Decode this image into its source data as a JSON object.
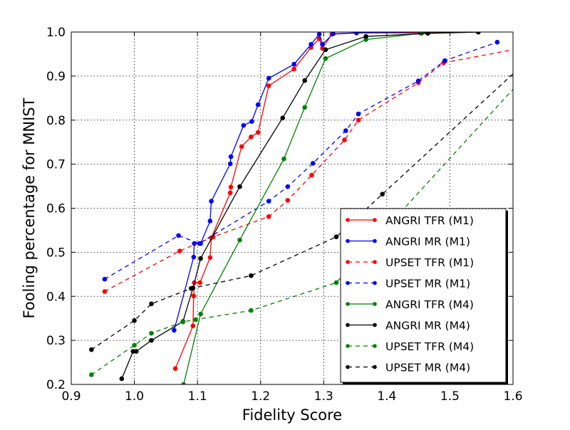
{
  "chart_data": {
    "type": "line",
    "title": "",
    "xlabel": "Fidelity Score",
    "ylabel": "Fooling percentage for MNIST",
    "xlim": [
      0.9,
      1.6
    ],
    "ylim": [
      0.2,
      1.0
    ],
    "xticks": [
      0.9,
      1.0,
      1.1,
      1.2,
      1.3,
      1.4,
      1.5,
      1.6
    ],
    "xtick_labels": [
      "0.9",
      "1.0",
      "1.1",
      "1.2",
      "1.3",
      "1.4",
      "1.5",
      "1.6"
    ],
    "yticks": [
      0.2,
      0.3,
      0.4,
      0.5,
      0.6,
      0.7,
      0.8,
      0.9,
      1.0
    ],
    "ytick_labels": [
      "0.2",
      "0.3",
      "0.4",
      "0.5",
      "0.6",
      "0.7",
      "0.8",
      "0.9",
      "1.0"
    ],
    "grid": true,
    "legend_position": "lower-right",
    "series": [
      {
        "name": "ANGRI TFR (M1)",
        "color": "#ff0000",
        "style": "solid",
        "x": [
          1.065,
          1.093,
          1.094,
          1.095,
          1.104,
          1.12,
          1.122,
          1.152,
          1.153,
          1.17,
          1.185,
          1.196,
          1.213,
          1.253,
          1.28,
          1.293,
          1.298,
          1.313,
          1.352,
          1.453,
          1.545
        ],
        "y": [
          0.236,
          0.333,
          0.401,
          0.431,
          0.431,
          0.488,
          0.533,
          0.635,
          0.648,
          0.74,
          0.762,
          0.772,
          0.878,
          0.916,
          0.965,
          0.985,
          0.963,
          0.995,
          0.998,
          0.998,
          1.0
        ]
      },
      {
        "name": "ANGRI MR (M1)",
        "color": "#0000ff",
        "style": "solid",
        "x": [
          1.063,
          1.094,
          1.095,
          1.105,
          1.12,
          1.122,
          1.152,
          1.153,
          1.173,
          1.186,
          1.196,
          1.213,
          1.253,
          1.28,
          1.293,
          1.298,
          1.315,
          1.352,
          1.453,
          1.545
        ],
        "y": [
          0.323,
          0.489,
          0.52,
          0.52,
          0.571,
          0.616,
          0.701,
          0.717,
          0.788,
          0.797,
          0.835,
          0.895,
          0.927,
          0.972,
          0.995,
          0.972,
          0.996,
          0.998,
          1.0,
          1.0
        ]
      },
      {
        "name": "UPSET TFR (M1)",
        "color": "#ff0000",
        "style": "dashed",
        "x": [
          0.953,
          1.072,
          1.125,
          1.213,
          1.243,
          1.281,
          1.333,
          1.355,
          1.45,
          1.49
        ],
        "y": [
          0.411,
          0.503,
          0.535,
          0.581,
          0.618,
          0.675,
          0.755,
          0.8,
          0.885,
          0.93
        ],
        "extends_to": [
          1.6,
          0.96
        ]
      },
      {
        "name": "UPSET MR (M1)",
        "color": "#0000ff",
        "style": "dashed",
        "x": [
          0.953,
          1.07,
          1.103,
          1.213,
          1.243,
          1.283,
          1.335,
          1.355,
          1.45,
          1.492,
          1.575
        ],
        "y": [
          0.439,
          0.538,
          0.52,
          0.616,
          0.649,
          0.702,
          0.776,
          0.814,
          0.889,
          0.935,
          0.977
        ]
      },
      {
        "name": "ANGRI TFR (M4)",
        "color": "#008000",
        "style": "solid",
        "x": [
          1.078,
          1.105,
          1.167,
          1.237,
          1.27,
          1.303,
          1.367,
          1.455,
          1.545
        ],
        "y": [
          0.2,
          0.36,
          0.528,
          0.712,
          0.829,
          0.94,
          0.983,
          0.997,
          1.0
        ]
      },
      {
        "name": "ANGRI MR (M4)",
        "color": "#000000",
        "style": "solid",
        "x": [
          0.98,
          0.998,
          1.003,
          1.027,
          1.077,
          1.093,
          1.105,
          1.167,
          1.235,
          1.27,
          1.303,
          1.367,
          1.465,
          1.545
        ],
        "y": [
          0.213,
          0.275,
          0.275,
          0.3,
          0.343,
          0.419,
          0.486,
          0.649,
          0.805,
          0.89,
          0.96,
          0.99,
          0.997,
          1.0
        ]
      },
      {
        "name": "UPSET TFR (M4)",
        "color": "#008000",
        "style": "dashed",
        "x": [
          0.932,
          1.0,
          1.027,
          1.077,
          1.097,
          1.185,
          1.32
        ],
        "y": [
          0.222,
          0.289,
          0.316,
          0.342,
          0.347,
          0.368,
          0.431
        ],
        "extends_to": [
          1.6,
          0.87
        ]
      },
      {
        "name": "UPSET MR (M4)",
        "color": "#000000",
        "style": "dashed",
        "x": [
          0.932,
          1.0,
          1.027,
          1.09,
          1.185,
          1.32,
          1.393
        ],
        "y": [
          0.279,
          0.345,
          0.383,
          0.418,
          0.447,
          0.535,
          0.632
        ],
        "extends_to": [
          1.6,
          0.905
        ]
      }
    ]
  }
}
